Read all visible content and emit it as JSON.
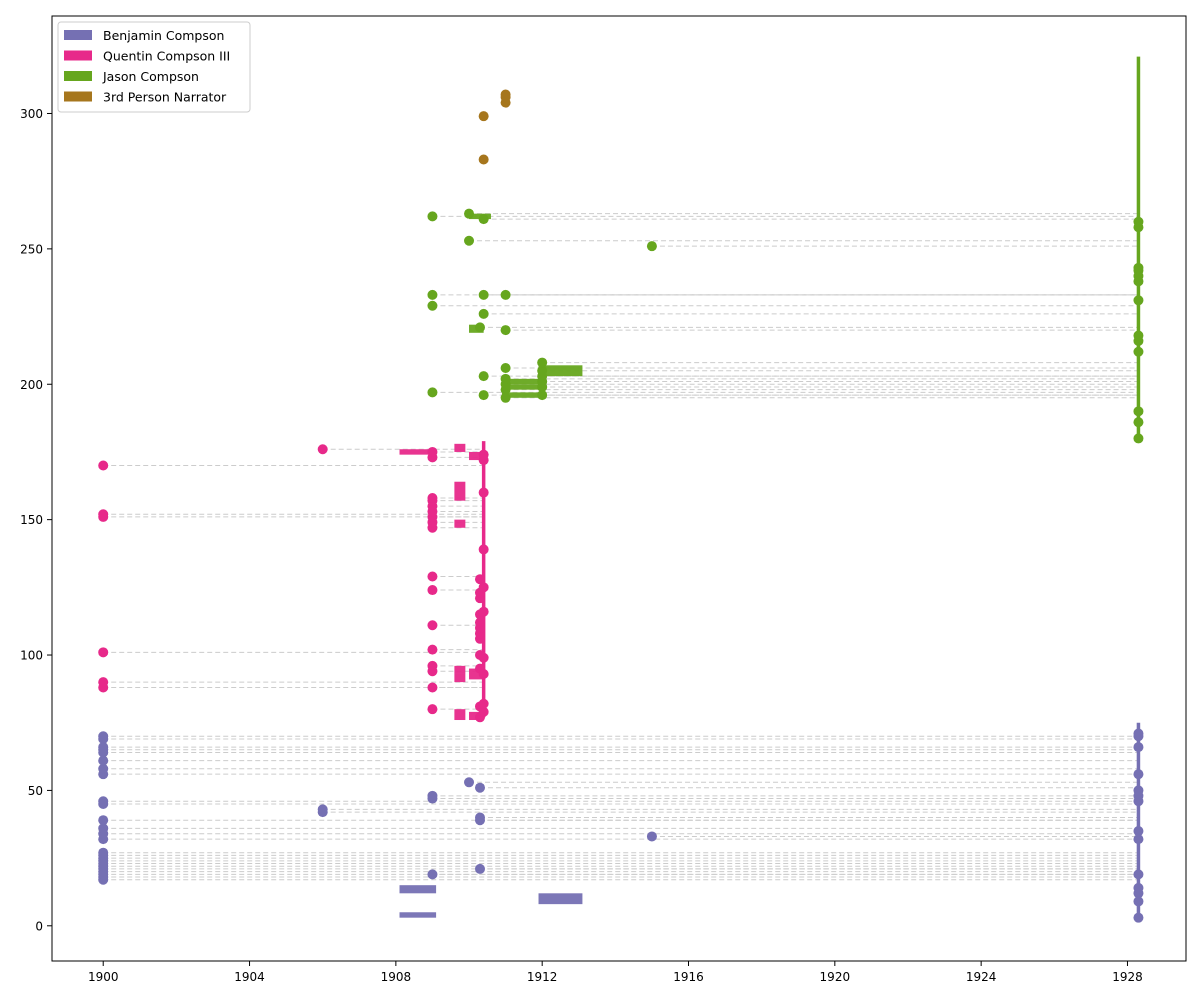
{
  "chart_data": {
    "type": "scatter",
    "title": "",
    "xlabel": "",
    "ylabel": "",
    "xlim": [
      1898.6,
      1929.6
    ],
    "ylim": [
      -13,
      336
    ],
    "x_ticks": [
      {
        "value": 1900,
        "label": "1900"
      },
      {
        "value": 1904,
        "label": "1904"
      },
      {
        "value": 1908,
        "label": "1908"
      },
      {
        "value": 1912,
        "label": "1912"
      },
      {
        "value": 1916,
        "label": "1916"
      },
      {
        "value": 1920,
        "label": "1920"
      },
      {
        "value": 1924,
        "label": "1924"
      },
      {
        "value": 1928,
        "label": "1928"
      }
    ],
    "y_ticks": [
      {
        "value": 0,
        "label": "0"
      },
      {
        "value": 50,
        "label": "50"
      },
      {
        "value": 100,
        "label": "100"
      },
      {
        "value": 150,
        "label": "150"
      },
      {
        "value": 200,
        "label": "200"
      },
      {
        "value": 250,
        "label": "250"
      },
      {
        "value": 300,
        "label": "300"
      }
    ],
    "grid": false,
    "legend_position": "top-left",
    "connector_color": "#cccccc",
    "series": [
      {
        "name": "Benjamin Compson",
        "color": "#7570b3",
        "present_x": 1928.3,
        "present_range": [
          3,
          75
        ],
        "points": [
          [
            1900,
            17
          ],
          [
            1900,
            18
          ],
          [
            1900,
            19
          ],
          [
            1900,
            20
          ],
          [
            1900,
            21
          ],
          [
            1900,
            22
          ],
          [
            1900,
            23
          ],
          [
            1900,
            24
          ],
          [
            1900,
            25
          ],
          [
            1900,
            26
          ],
          [
            1900,
            27
          ],
          [
            1900,
            32
          ],
          [
            1900,
            34
          ],
          [
            1900,
            36
          ],
          [
            1900,
            39
          ],
          [
            1900,
            45
          ],
          [
            1900,
            46
          ],
          [
            1900,
            56
          ],
          [
            1900,
            58
          ],
          [
            1900,
            61
          ],
          [
            1900,
            64
          ],
          [
            1900,
            65
          ],
          [
            1900,
            66
          ],
          [
            1900,
            69
          ],
          [
            1900,
            70
          ],
          [
            1906,
            42
          ],
          [
            1906,
            43
          ],
          [
            1909,
            19
          ],
          [
            1909,
            47
          ],
          [
            1909,
            48
          ],
          [
            1910,
            53
          ],
          [
            1910.3,
            21
          ],
          [
            1910.3,
            39
          ],
          [
            1910.3,
            40
          ],
          [
            1910.3,
            51
          ],
          [
            1915,
            33
          ],
          [
            1928.3,
            3
          ],
          [
            1928.3,
            9
          ],
          [
            1928.3,
            12
          ],
          [
            1928.3,
            14
          ],
          [
            1928.3,
            19
          ],
          [
            1928.3,
            32
          ],
          [
            1928.3,
            35
          ],
          [
            1928.3,
            46
          ],
          [
            1928.3,
            48
          ],
          [
            1928.3,
            50
          ],
          [
            1928.3,
            56
          ],
          [
            1928.3,
            66
          ],
          [
            1928.3,
            70
          ],
          [
            1928.3,
            71
          ]
        ],
        "spans": [
          {
            "x0": 1908.1,
            "x1": 1909.1,
            "y0": 3,
            "y1": 5
          },
          {
            "x0": 1908.1,
            "x1": 1909.1,
            "y0": 12,
            "y1": 15
          },
          {
            "x0": 1911.9,
            "x1": 1913.1,
            "y0": 8,
            "y1": 12
          }
        ]
      },
      {
        "name": "Quentin Compson III",
        "color": "#e7298a",
        "present_x": 1910.4,
        "present_range": [
          77,
          179
        ],
        "points": [
          [
            1900,
            88
          ],
          [
            1900,
            90
          ],
          [
            1900,
            101
          ],
          [
            1900,
            151
          ],
          [
            1900,
            152
          ],
          [
            1900,
            170
          ],
          [
            1906,
            176
          ],
          [
            1909,
            80
          ],
          [
            1909,
            88
          ],
          [
            1909,
            94
          ],
          [
            1909,
            96
          ],
          [
            1909,
            102
          ],
          [
            1909,
            111
          ],
          [
            1909,
            124
          ],
          [
            1909,
            129
          ],
          [
            1909,
            147
          ],
          [
            1909,
            149
          ],
          [
            1909,
            151
          ],
          [
            1909,
            153
          ],
          [
            1909,
            155
          ],
          [
            1909,
            157
          ],
          [
            1909,
            158
          ],
          [
            1909,
            173
          ],
          [
            1909,
            175
          ],
          [
            1910.3,
            77
          ],
          [
            1910.3,
            81
          ],
          [
            1910.3,
            95
          ],
          [
            1910.3,
            100
          ],
          [
            1910.3,
            106
          ],
          [
            1910.3,
            108
          ],
          [
            1910.3,
            110
          ],
          [
            1910.3,
            112
          ],
          [
            1910.3,
            115
          ],
          [
            1910.3,
            121
          ],
          [
            1910.3,
            123
          ],
          [
            1910.3,
            128
          ],
          [
            1910.4,
            79
          ],
          [
            1910.4,
            82
          ],
          [
            1910.4,
            93
          ],
          [
            1910.4,
            99
          ],
          [
            1910.4,
            116
          ],
          [
            1910.4,
            125
          ],
          [
            1910.4,
            139
          ],
          [
            1910.4,
            160
          ],
          [
            1910.4,
            172
          ],
          [
            1910.4,
            174
          ]
        ],
        "spans": [
          {
            "x0": 1908.1,
            "x1": 1909.1,
            "y0": 174,
            "y1": 176
          },
          {
            "x0": 1909.6,
            "x1": 1909.9,
            "y0": 175,
            "y1": 178
          },
          {
            "x0": 1909.6,
            "x1": 1909.9,
            "y0": 157,
            "y1": 164
          },
          {
            "x0": 1909.6,
            "x1": 1909.9,
            "y0": 147,
            "y1": 150
          },
          {
            "x0": 1909.6,
            "x1": 1909.9,
            "y0": 93,
            "y1": 96
          },
          {
            "x0": 1909.6,
            "x1": 1909.9,
            "y0": 90,
            "y1": 93
          },
          {
            "x0": 1909.6,
            "x1": 1909.9,
            "y0": 76,
            "y1": 80
          },
          {
            "x0": 1910.0,
            "x1": 1910.4,
            "y0": 172,
            "y1": 175
          },
          {
            "x0": 1910.0,
            "x1": 1910.4,
            "y0": 91,
            "y1": 95
          },
          {
            "x0": 1910.0,
            "x1": 1910.4,
            "y0": 76,
            "y1": 79
          }
        ]
      },
      {
        "name": "Jason Compson",
        "color": "#66a61e",
        "present_x": 1928.3,
        "present_range": [
          180,
          321
        ],
        "points": [
          [
            1909,
            197
          ],
          [
            1909,
            229
          ],
          [
            1909,
            233
          ],
          [
            1909,
            262
          ],
          [
            1910,
            253
          ],
          [
            1910,
            263
          ],
          [
            1910.3,
            221
          ],
          [
            1910.4,
            196
          ],
          [
            1910.4,
            203
          ],
          [
            1910.4,
            226
          ],
          [
            1910.4,
            233
          ],
          [
            1910.4,
            261
          ],
          [
            1915,
            251
          ],
          [
            1911,
            195
          ],
          [
            1911,
            198
          ],
          [
            1911,
            200
          ],
          [
            1911,
            202
          ],
          [
            1911,
            206
          ],
          [
            1911,
            220
          ],
          [
            1911,
            233
          ],
          [
            1912,
            196
          ],
          [
            1912,
            199
          ],
          [
            1912,
            201
          ],
          [
            1912,
            203
          ],
          [
            1912,
            205
          ],
          [
            1912,
            208
          ],
          [
            1928.3,
            180
          ],
          [
            1928.3,
            186
          ],
          [
            1928.3,
            190
          ],
          [
            1928.3,
            212
          ],
          [
            1928.3,
            216
          ],
          [
            1928.3,
            218
          ],
          [
            1928.3,
            231
          ],
          [
            1928.3,
            238
          ],
          [
            1928.3,
            240
          ],
          [
            1928.3,
            242
          ],
          [
            1928.3,
            243
          ],
          [
            1928.3,
            258
          ],
          [
            1928.3,
            260
          ]
        ],
        "spans": [
          {
            "x0": 1910.0,
            "x1": 1910.6,
            "y0": 261,
            "y1": 263
          },
          {
            "x0": 1910.0,
            "x1": 1910.4,
            "y0": 219,
            "y1": 222
          },
          {
            "x0": 1910.9,
            "x1": 1912.1,
            "y0": 195,
            "y1": 197
          },
          {
            "x0": 1910.9,
            "x1": 1912.1,
            "y0": 198,
            "y1": 200
          },
          {
            "x0": 1910.9,
            "x1": 1912.1,
            "y0": 200,
            "y1": 202
          },
          {
            "x0": 1911.9,
            "x1": 1913.1,
            "y0": 203,
            "y1": 207
          }
        ]
      },
      {
        "name": "3rd Person Narrator",
        "color": "#a6761d",
        "points": [
          [
            1910.4,
            283
          ],
          [
            1910.4,
            299
          ],
          [
            1911,
            304
          ],
          [
            1911,
            306
          ],
          [
            1911,
            307
          ]
        ],
        "spans": []
      }
    ]
  }
}
